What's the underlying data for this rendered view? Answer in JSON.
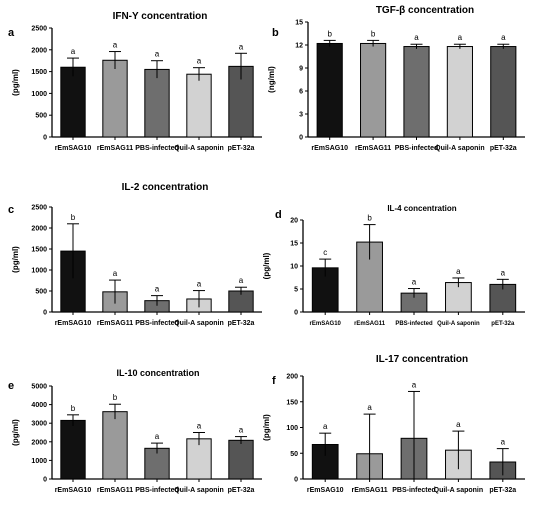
{
  "figure": {
    "tick_color": "#000000",
    "errorbar_color": "#000000"
  },
  "chart_data": [
    {
      "type": "bar",
      "panel": "a",
      "title": "IFN-Y concentration",
      "xlabel": "",
      "ylabel": "(pg/ml)",
      "categories": [
        "rEmSAG10",
        "rEmSAG11",
        "PBS-infected",
        "Quil-A saponin",
        "pET-32a"
      ],
      "values": [
        1600,
        1760,
        1550,
        1440,
        1620
      ],
      "errors": [
        210,
        200,
        200,
        150,
        300
      ],
      "sig": [
        "a",
        "a",
        "a",
        "a",
        "a"
      ],
      "colors": [
        "#111111",
        "#9a9a9a",
        "#6e6e6e",
        "#d2d2d2",
        "#555555"
      ],
      "ylim": [
        0,
        2500
      ],
      "yticks": [
        0,
        500,
        1000,
        1500,
        2000,
        2500
      ],
      "ytick_labels": [
        "0",
        "500",
        "1000",
        "1500",
        "2000",
        "2500"
      ]
    },
    {
      "type": "bar",
      "panel": "b",
      "title": "TGF-β concentration",
      "xlabel": "",
      "ylabel": "(ng/ml)",
      "categories": [
        "rEmSAG10",
        "rEmSAG11",
        "PBS-infected",
        "Quil-A saponin",
        "pET-32a"
      ],
      "values": [
        12.2,
        12.2,
        11.8,
        11.8,
        11.8
      ],
      "errors": [
        0.4,
        0.4,
        0.3,
        0.3,
        0.3
      ],
      "sig": [
        "b",
        "b",
        "a",
        "a",
        "a"
      ],
      "colors": [
        "#111111",
        "#9a9a9a",
        "#6e6e6e",
        "#d2d2d2",
        "#555555"
      ],
      "ylim": [
        0,
        15
      ],
      "yticks": [
        0,
        3,
        6,
        9,
        12,
        15
      ],
      "ytick_labels": [
        "0",
        "3",
        "6",
        "9",
        "12",
        "15"
      ]
    },
    {
      "type": "bar",
      "panel": "c",
      "title": "IL-2 concentration",
      "xlabel": "",
      "ylabel": "(pg/ml)",
      "categories": [
        "rEmSAG10",
        "rEmSAG11",
        "PBS-infected",
        "Quil-A saponin",
        "pET-32a"
      ],
      "values": [
        1450,
        480,
        270,
        310,
        500
      ],
      "errors": [
        650,
        280,
        120,
        200,
        90
      ],
      "sig": [
        "b",
        "a",
        "a",
        "a",
        "a"
      ],
      "colors": [
        "#111111",
        "#9a9a9a",
        "#6e6e6e",
        "#d2d2d2",
        "#555555"
      ],
      "ylim": [
        0,
        2500
      ],
      "yticks": [
        0,
        500,
        1000,
        1500,
        2000,
        2500
      ],
      "ytick_labels": [
        "0",
        "500",
        "1000",
        "1500",
        "2000",
        "2500"
      ]
    },
    {
      "type": "bar",
      "panel": "d",
      "title": "IL-4 concentration",
      "xlabel": "",
      "ylabel": "(pg/ml)",
      "categories": [
        "rEmSAG10",
        "rEmSAG11",
        "PBS-infected",
        "Quil-A saponin",
        "pET-32a"
      ],
      "values": [
        9.6,
        15.2,
        4.1,
        6.4,
        6.0
      ],
      "errors": [
        1.9,
        3.8,
        1.0,
        1.0,
        1.1
      ],
      "sig": [
        "c",
        "b",
        "a",
        "a",
        "a"
      ],
      "colors": [
        "#111111",
        "#9a9a9a",
        "#6e6e6e",
        "#d2d2d2",
        "#555555"
      ],
      "ylim": [
        0,
        20
      ],
      "yticks": [
        0,
        5,
        10,
        15,
        20
      ],
      "ytick_labels": [
        "0",
        "5",
        "10",
        "15",
        "20"
      ]
    },
    {
      "type": "bar",
      "panel": "e",
      "title": "IL-10 concentration",
      "xlabel": "",
      "ylabel": "(pg/ml)",
      "categories": [
        "rEmSAG10",
        "rEmSAG11",
        "PBS-infected",
        "Quil-A saponin",
        "pET-32a"
      ],
      "values": [
        3150,
        3620,
        1650,
        2160,
        2080
      ],
      "errors": [
        300,
        400,
        280,
        340,
        200
      ],
      "sig": [
        "b",
        "b",
        "a",
        "a",
        "a"
      ],
      "colors": [
        "#111111",
        "#9a9a9a",
        "#6e6e6e",
        "#d2d2d2",
        "#555555"
      ],
      "ylim": [
        0,
        5000
      ],
      "yticks": [
        0,
        1000,
        2000,
        3000,
        4000,
        5000
      ],
      "ytick_labels": [
        "0",
        "1000",
        "2000",
        "3000",
        "4000",
        "5000"
      ]
    },
    {
      "type": "bar",
      "panel": "f",
      "title": "IL-17 concentration",
      "xlabel": "",
      "ylabel": "(pg/ml)",
      "categories": [
        "rEmSAG10",
        "rEmSAG11",
        "PBS-infected",
        "Quil-A saponin",
        "pET-32a"
      ],
      "values": [
        67,
        49,
        79,
        56,
        33
      ],
      "errors": [
        22,
        77,
        91,
        37,
        26
      ],
      "sig": [
        "a",
        "a",
        "a",
        "a",
        "a"
      ],
      "colors": [
        "#111111",
        "#9a9a9a",
        "#6e6e6e",
        "#d2d2d2",
        "#555555"
      ],
      "ylim": [
        0,
        200
      ],
      "yticks": [
        0,
        50,
        100,
        150,
        200
      ],
      "ytick_labels": [
        "0",
        "50",
        "100",
        "150",
        "200"
      ]
    }
  ]
}
